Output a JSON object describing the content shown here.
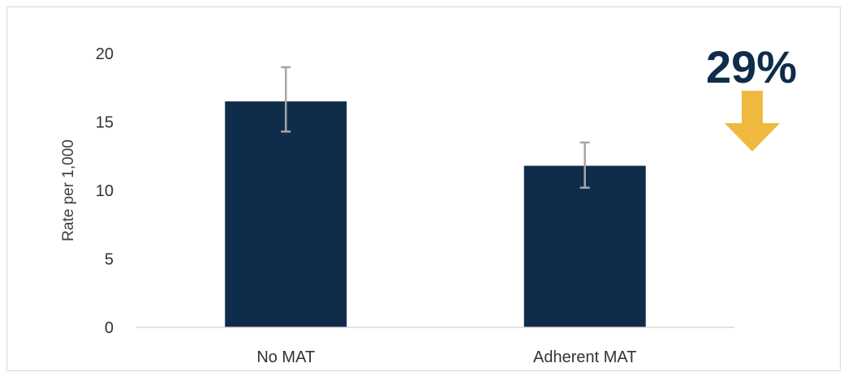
{
  "chart_data": {
    "type": "bar",
    "categories": [
      "No MAT",
      "Adherent MAT"
    ],
    "values": [
      16.5,
      11.8
    ],
    "error_bars": [
      {
        "low": 14.3,
        "high": 19.0
      },
      {
        "low": 10.2,
        "high": 13.5
      }
    ],
    "title": "",
    "xlabel": "",
    "ylabel": "Rate per 1,000",
    "ylim": [
      0,
      20
    ],
    "yticks": [
      0,
      5,
      10,
      15,
      20
    ],
    "grid": false,
    "legend": "none",
    "annotation": {
      "text": "29%",
      "direction": "down-arrow"
    }
  },
  "colors": {
    "bar": "#0f2d4a",
    "error_bar": "#a6a6a6",
    "axis_line": "#d9d9d9",
    "callout_text": "#0f2d4a",
    "arrow": "#efb940"
  }
}
